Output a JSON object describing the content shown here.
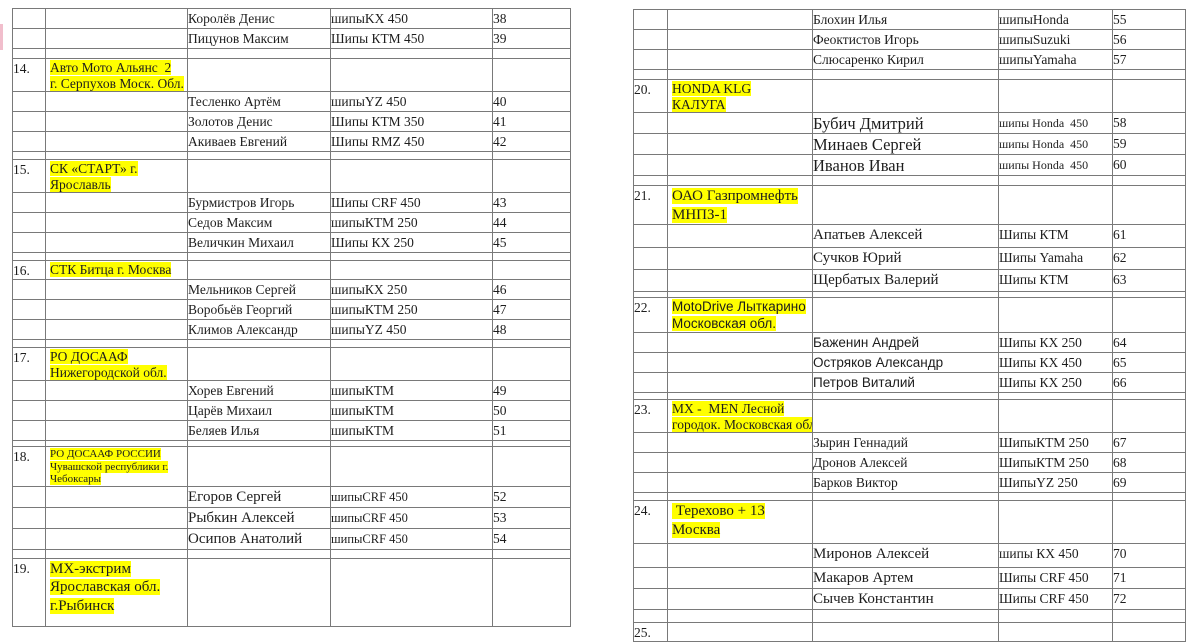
{
  "document": {
    "kind": "Список участников — регистрационная таблица",
    "highlight_color": "#ffff00",
    "border_color": "#797979",
    "text_color": "#1d1d1d"
  },
  "tables": [
    {
      "side": "left",
      "rows": [
        {
          "t": "rider",
          "name": "Королёв Денис",
          "tire": "шипыKX 450",
          "num": "38"
        },
        {
          "t": "rider",
          "name": "Пицунов Максим",
          "tire": "Шипы КТМ 450",
          "num": "39"
        },
        {
          "t": "spacer",
          "cls": "h10"
        },
        {
          "t": "team",
          "label": "14.",
          "cls": "h32",
          "lines": [
            "Авто Мото Альянс  2",
            "г. Серпухов Моск. Обл."
          ]
        },
        {
          "t": "rider",
          "name": "Тесленко Артём",
          "tire": "шипыYZ 450",
          "num": "40"
        },
        {
          "t": "rider",
          "name": "Золотов Денис",
          "tire": "Шипы КТМ 350",
          "num": "41"
        },
        {
          "t": "rider",
          "name": "Акиваев Евгений",
          "tire": "Шипы RMZ 450",
          "num": "42"
        },
        {
          "t": "spacer",
          "cls": "h8"
        },
        {
          "t": "team",
          "label": "15.",
          "cls": "h32",
          "lines": [
            "СК «СТАРТ» г.",
            "Ярославль"
          ]
        },
        {
          "t": "rider",
          "name": "Бурмистров Игорь",
          "tire": "Шипы CRF 450",
          "num": "43"
        },
        {
          "t": "rider",
          "name": "Седов Максим",
          "tire": "шипыКТМ 250",
          "num": "44"
        },
        {
          "t": "rider",
          "name": "Величкин Михаил",
          "tire": "Шипы КХ 250",
          "num": "45"
        },
        {
          "t": "spacer",
          "cls": "h8"
        },
        {
          "t": "team",
          "label": "16.",
          "cls": "h18",
          "lines": [
            "СТК Битца г. Москва"
          ]
        },
        {
          "t": "rider",
          "name": "Мельников Сергей",
          "tire": "шипыКХ 250",
          "num": "46"
        },
        {
          "t": "rider",
          "name": "Воробьёв Георгий",
          "tire": "шипыКТМ 250",
          "num": "47"
        },
        {
          "t": "rider",
          "name": "Климов Александр",
          "tire": "шипыYZ 450",
          "num": "48"
        },
        {
          "t": "spacer",
          "cls": "h8"
        },
        {
          "t": "team",
          "label": "17.",
          "cls": "h30",
          "lines": [
            "РО ДОСААФ",
            "Нижегородской обл."
          ]
        },
        {
          "t": "rider",
          "name": "Хорев Евгений",
          "tire": "шипыКТМ",
          "num": "49"
        },
        {
          "t": "rider",
          "name": "Царёв Михаил",
          "tire": "шипыКТМ",
          "num": "50"
        },
        {
          "t": "rider",
          "name": "Беляев Илья",
          "tire": "шипыКТМ",
          "num": "51"
        },
        {
          "t": "spacer",
          "cls": "h6"
        },
        {
          "t": "team",
          "label": "18.",
          "cls": "t-small h39",
          "lines": [
            "РО ДОСААФ РОССИИ",
            "Чувашской республики г.",
            "Чебоксары"
          ]
        },
        {
          "t": "rider",
          "cls": "lg tsm h20",
          "name": "Егоров Сергей",
          "tire": "шипыCRF 450",
          "num": "52"
        },
        {
          "t": "rider",
          "cls": "lg tsm h20",
          "name": "Рыбкин Алексей",
          "tire": "шипыCRF 450",
          "num": "53"
        },
        {
          "t": "rider",
          "cls": "lg tsm",
          "name": "Осипов Анатолий",
          "tire": "шипыCRF 450",
          "num": "54"
        },
        {
          "t": "spacer",
          "cls": "h9"
        },
        {
          "t": "team",
          "label": "19.",
          "cls": "t-large h68",
          "lines": [
            "МХ-экстрим",
            "Ярославская обл.",
            "г.Рыбинск"
          ]
        }
      ]
    },
    {
      "side": "right",
      "rows": [
        {
          "t": "rider",
          "name": "Блохин Илья",
          "tire": "шипыHonda",
          "num": "55"
        },
        {
          "t": "rider",
          "name": "Феоктистов Игорь",
          "tire": "шипыSuzuki",
          "num": "56"
        },
        {
          "t": "rider",
          "cls": "h18",
          "name": "Слюсаренко Кирил",
          "tire": "шипыYamaha",
          "num": "57"
        },
        {
          "t": "spacer",
          "cls": "h10"
        },
        {
          "t": "team",
          "label": "20.",
          "cls": "h28",
          "lines": [
            "HONDA KLG",
            "КАЛУГА"
          ]
        },
        {
          "t": "rider",
          "cls": "xl",
          "name": "Бубич Дмитрий",
          "tire": "шипы Honda  450",
          "num": "58"
        },
        {
          "t": "rider",
          "cls": "xl h20",
          "name": "Минаев Сергей",
          "tire": "шипы Honda  450",
          "num": "59"
        },
        {
          "t": "rider",
          "cls": "xl h18",
          "name": "Иванов Иван",
          "tire": "шипы Honda  450",
          "num": "60"
        },
        {
          "t": "spacer",
          "cls": "h10"
        },
        {
          "t": "team",
          "label": "21.",
          "cls": "t-large h38",
          "lines": [
            "ОАО Газпромнефть",
            "МНПЗ-1"
          ]
        },
        {
          "t": "rider",
          "cls": "lg h23",
          "name": "Апатьев Алексей",
          "tire": "Шипы КТМ",
          "num": "61"
        },
        {
          "t": "rider",
          "cls": "lg h22",
          "name": "Сучков Юрий",
          "tire": "Шипы Yamaha",
          "num": "62"
        },
        {
          "t": "rider",
          "cls": "lg h22",
          "name": "Щербатых Валерий",
          "tire": "Шипы КТМ",
          "num": "63"
        },
        {
          "t": "spacer",
          "cls": "h6"
        },
        {
          "t": "team",
          "label": "22.",
          "cls": "t-sans h35",
          "lines": [
            "MotoDrive Лыткарино",
            "Московская обл."
          ]
        },
        {
          "t": "rider",
          "cls": "sans h20",
          "name": "Баженин Андрей",
          "tire": "Шипы КХ 250",
          "num": "64"
        },
        {
          "t": "rider",
          "cls": "sans h18",
          "name": "Остряков Александр",
          "tire": "Шипы КХ 450",
          "num": "65"
        },
        {
          "t": "rider",
          "cls": "sans h18",
          "name": "Петров Виталий",
          "tire": "Шипы КХ 250",
          "num": "66"
        },
        {
          "t": "spacer",
          "cls": "h7"
        },
        {
          "t": "team",
          "label": "23.",
          "cls": "h32",
          "lines": [
            "МХ -  MEN Лесной",
            "городок. Московская обл."
          ]
        },
        {
          "t": "rider",
          "cls": "h20",
          "name": "Зырин Геннадий",
          "tire": "ШипыКТМ 250",
          "num": "67"
        },
        {
          "t": "rider",
          "cls": "h20",
          "name": "Дронов Алексей",
          "tire": "ШипыКТМ 250",
          "num": "68"
        },
        {
          "t": "rider",
          "cls": "h20",
          "name": "Барков Виктор",
          "tire": "ШипыYZ 250",
          "num": "69"
        },
        {
          "t": "spacer",
          "cls": "h8"
        },
        {
          "t": "team",
          "label": "24.",
          "cls": "t-large h43",
          "lines": [
            " Терехово + 13",
            "Москва"
          ]
        },
        {
          "t": "rider",
          "cls": "lg h24",
          "name": "Миронов Алексей",
          "tire": "шипы КХ 450",
          "num": "70"
        },
        {
          "t": "rider",
          "cls": "lg h20",
          "name": "Макаров Артем",
          "tire": "Шипы CRF 450",
          "num": "71"
        },
        {
          "t": "rider",
          "cls": "lg h18",
          "name": "Сычев Константин",
          "tire": "Шипы CRF 450",
          "num": "72"
        },
        {
          "t": "spacer",
          "cls": "h13"
        },
        {
          "t": "team",
          "label": "25.",
          "cls": "h15",
          "lines": []
        }
      ]
    }
  ]
}
